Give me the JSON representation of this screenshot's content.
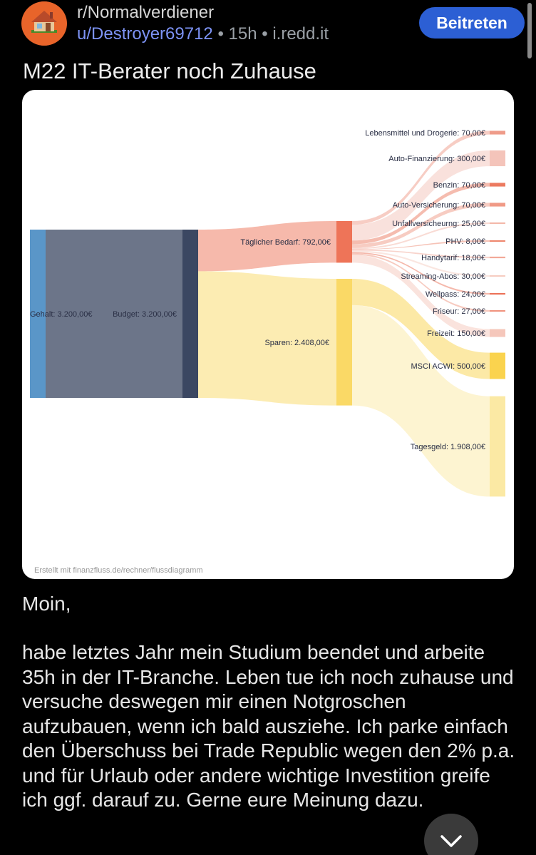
{
  "post": {
    "subreddit": "r/Normalverdiener",
    "author": "u/Destroyer69712",
    "separator": "•",
    "time": "15h",
    "domain": "i.redd.it",
    "join_label": "Beitreten",
    "title": "M22 IT-Berater noch Zuhause",
    "greeting": "Moin,",
    "body": "habe letztes Jahr mein Studium beendet und arbeite 35h in der IT-Branche. Leben tue ich noch zuhause und versuche deswegen mir einen Notgroschen aufzubauen, wenn ich bald ausziehe. Ich parke einfach den Überschuss bei Trade Republic wegen den 2% p.a. und für Urlaub oder andere wichtige Investition greife ich ggf. darauf zu. Gerne eure Meinung dazu."
  },
  "icons": {
    "avatar": "house-avatar-icon",
    "scroll_down": "chevron-down-icon"
  },
  "colors": {
    "accent": "#2c5fd4",
    "username": "#7d93f5"
  },
  "chart_data": {
    "type": "sankey",
    "credit": "Erstellt mit finanzfluss.de/rechner/flussdiagramm",
    "nodes": [
      {
        "id": "gehalt",
        "label": "Gehalt: 3.200,00€",
        "value": 3200,
        "color": "#5a96c8"
      },
      {
        "id": "budget",
        "label": "Budget: 3.200,00€",
        "value": 3200,
        "color": "#3b4762"
      },
      {
        "id": "bedarf",
        "label": "Täglicher Bedarf: 792,00€",
        "value": 792,
        "color": "#ee7458"
      },
      {
        "id": "sparen",
        "label": "Sparen: 2.408,00€",
        "value": 2408,
        "color": "#fad966"
      },
      {
        "id": "lebensmittel",
        "label": "Lebensmittel und Drogerie: 70,00€",
        "value": 70,
        "color": "#ef9c8a"
      },
      {
        "id": "auto_fin",
        "label": "Auto-Finanzierung: 300,00€",
        "value": 300,
        "color": "#f4c4ba"
      },
      {
        "id": "benzin",
        "label": "Benzin: 70,00€",
        "value": 70,
        "color": "#ec7a60"
      },
      {
        "id": "auto_vers",
        "label": "Auto-Versicherung: 70,00€",
        "value": 70,
        "color": "#f09a86"
      },
      {
        "id": "unfall",
        "label": "Unfallversicheurng: 25,00€",
        "value": 25,
        "color": "#f3b8aa"
      },
      {
        "id": "phv",
        "label": "PHV: 8,00€",
        "value": 8,
        "color": "#ee8870"
      },
      {
        "id": "handy",
        "label": "Handytarif: 18,00€",
        "value": 18,
        "color": "#f2a898"
      },
      {
        "id": "streaming",
        "label": "Streaming-Abos: 30,00€",
        "value": 30,
        "color": "#f6cdc2"
      },
      {
        "id": "wellpass",
        "label": "Wellpass: 24,00€",
        "value": 24,
        "color": "#ec7258"
      },
      {
        "id": "friseur",
        "label": "Friseur: 27,00€",
        "value": 27,
        "color": "#f09580"
      },
      {
        "id": "freizeit",
        "label": "Freizeit: 150,00€",
        "value": 150,
        "color": "#f5c7bb"
      },
      {
        "id": "msci",
        "label": "MSCI ACWI: 500,00€",
        "value": 500,
        "color": "#fad34e"
      },
      {
        "id": "tagesgeld",
        "label": "Tagesgeld: 1.908,00€",
        "value": 1908,
        "color": "#fbe9a4"
      }
    ],
    "links": [
      {
        "source": "gehalt",
        "target": "budget",
        "value": 3200
      },
      {
        "source": "budget",
        "target": "bedarf",
        "value": 792
      },
      {
        "source": "budget",
        "target": "sparen",
        "value": 2408
      },
      {
        "source": "bedarf",
        "target": "lebensmittel",
        "value": 70
      },
      {
        "source": "bedarf",
        "target": "auto_fin",
        "value": 300
      },
      {
        "source": "bedarf",
        "target": "benzin",
        "value": 70
      },
      {
        "source": "bedarf",
        "target": "auto_vers",
        "value": 70
      },
      {
        "source": "bedarf",
        "target": "unfall",
        "value": 25
      },
      {
        "source": "bedarf",
        "target": "phv",
        "value": 8
      },
      {
        "source": "bedarf",
        "target": "handy",
        "value": 18
      },
      {
        "source": "bedarf",
        "target": "streaming",
        "value": 30
      },
      {
        "source": "bedarf",
        "target": "wellpass",
        "value": 24
      },
      {
        "source": "bedarf",
        "target": "friseur",
        "value": 27
      },
      {
        "source": "bedarf",
        "target": "freizeit",
        "value": 150
      },
      {
        "source": "sparen",
        "target": "msci",
        "value": 500
      },
      {
        "source": "sparen",
        "target": "tagesgeld",
        "value": 1908
      }
    ]
  }
}
